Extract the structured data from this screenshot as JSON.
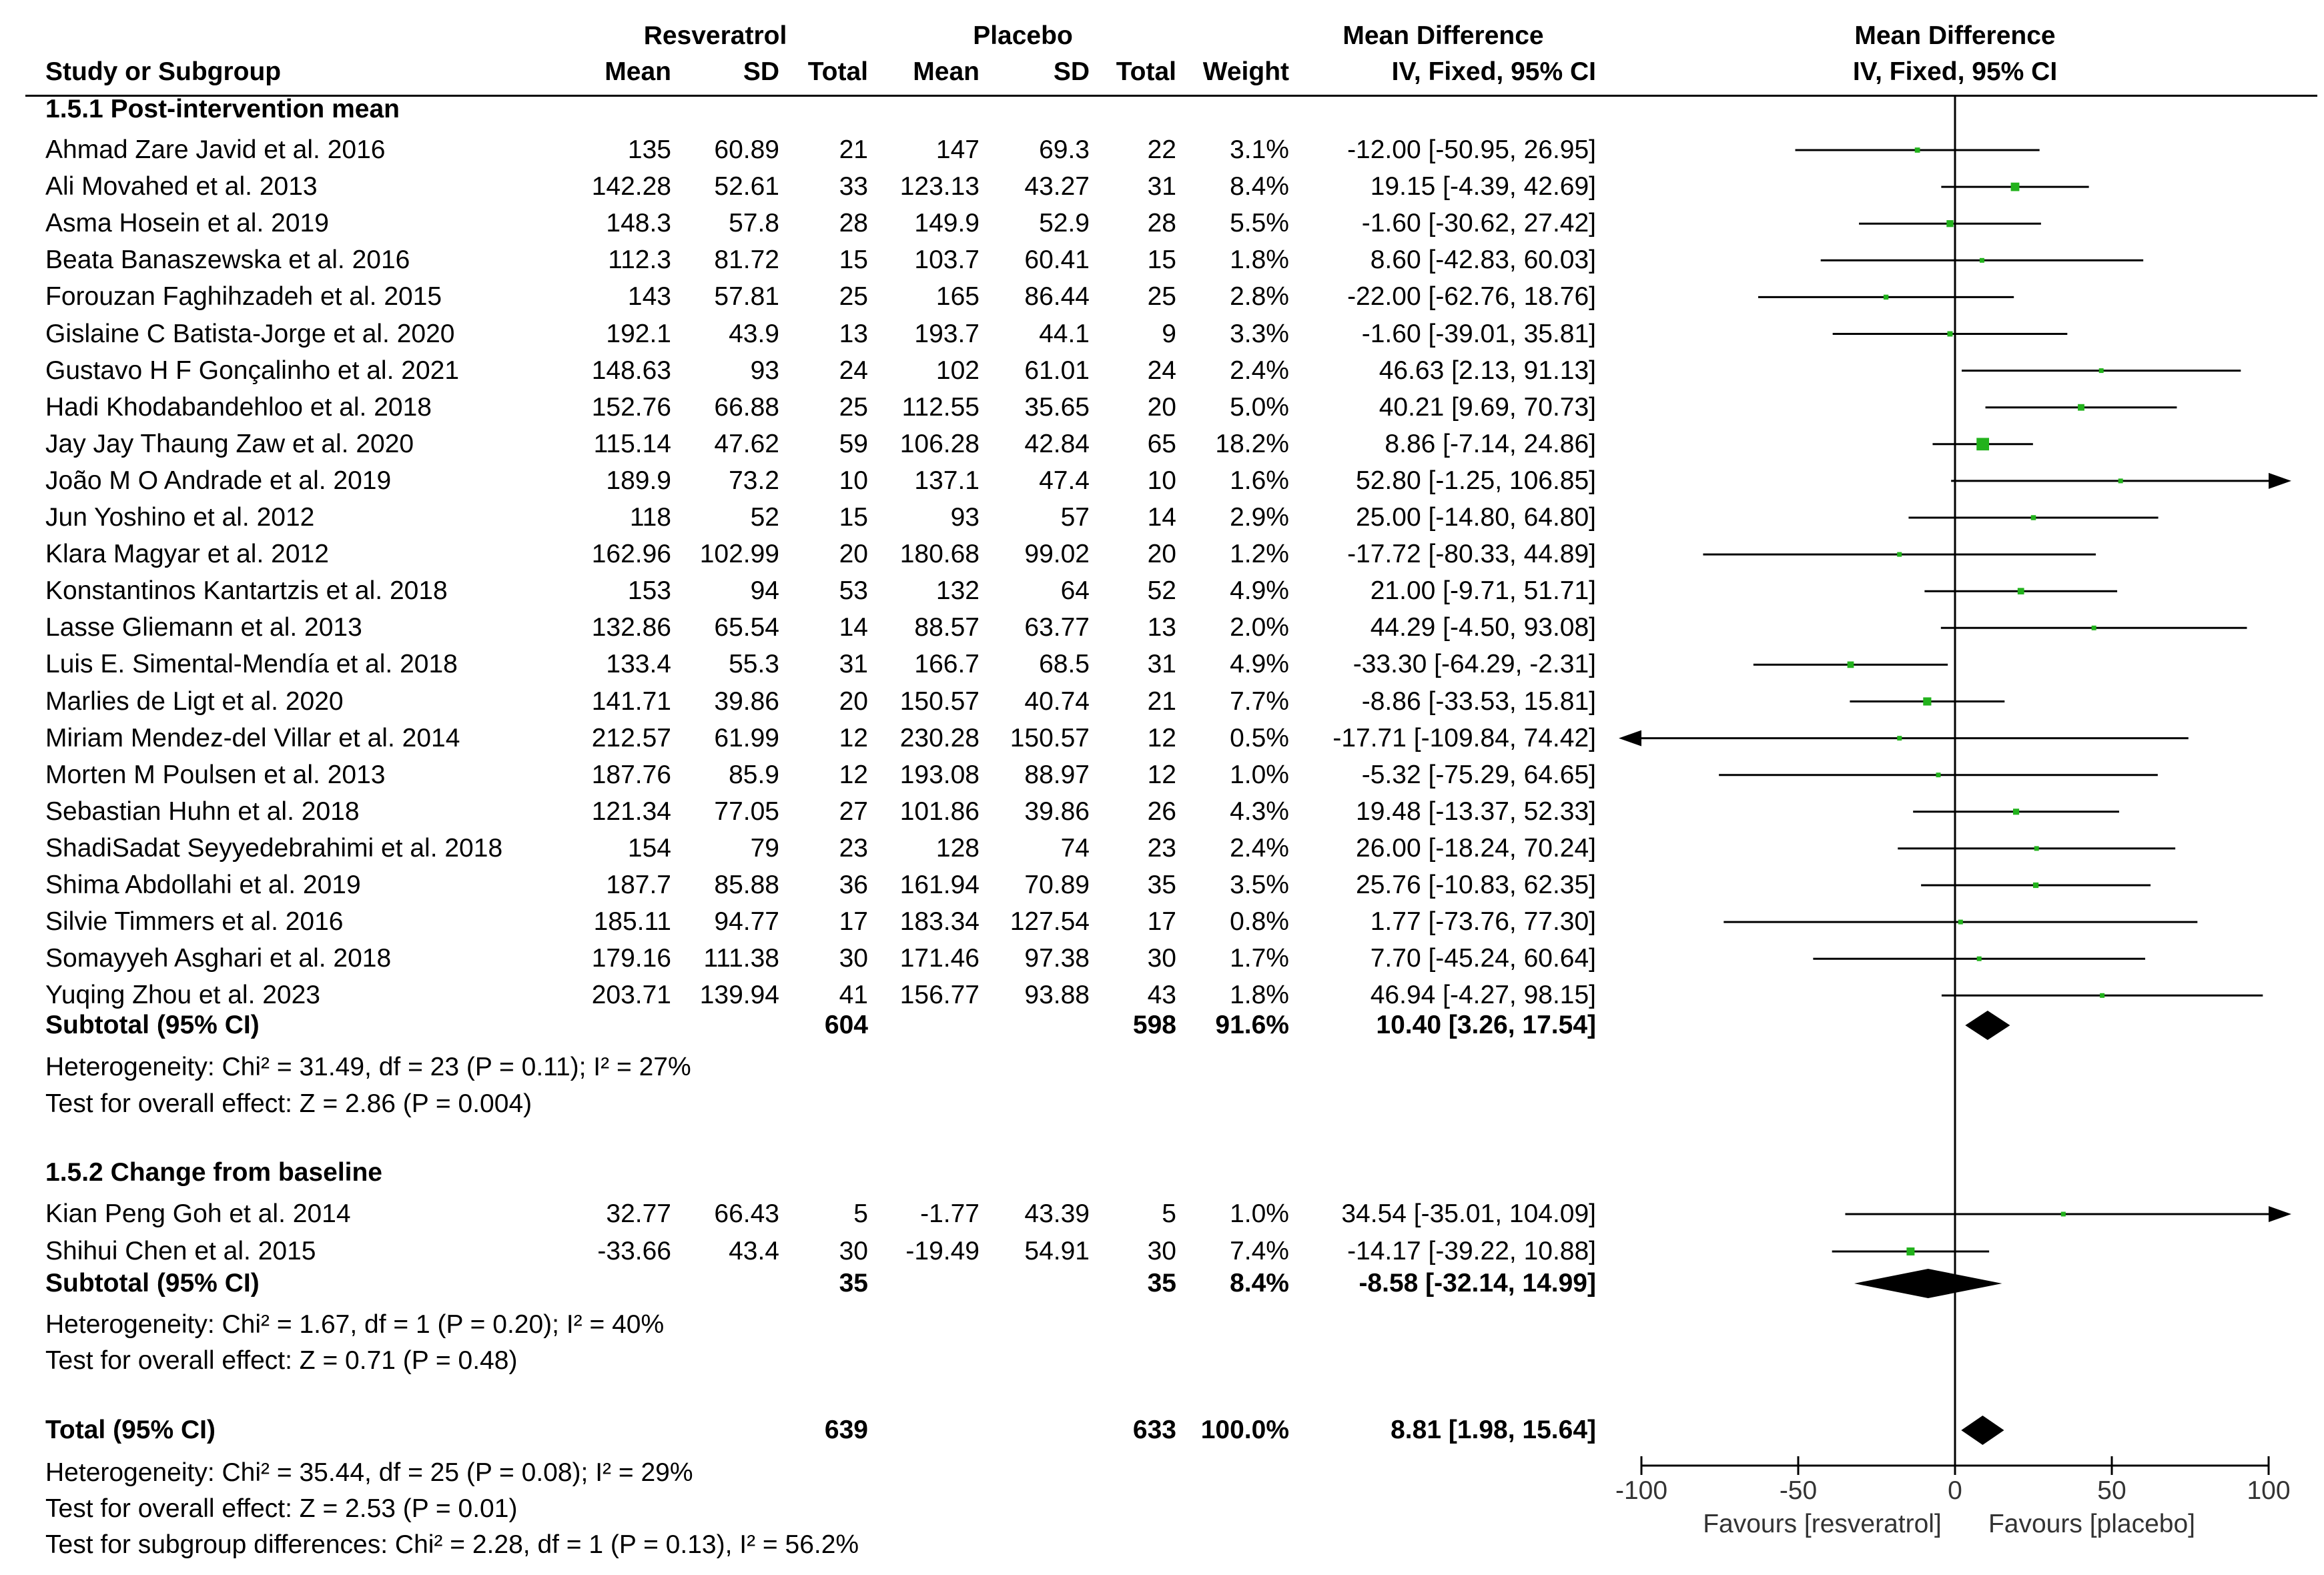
{
  "header": {
    "group_a": "Resveratrol",
    "group_b": "Placebo",
    "md_title": "Mean Difference",
    "plot_title": "Mean Difference",
    "study_col": "Study or Subgroup",
    "mean_a": "Mean",
    "sd_a": "SD",
    "total_a": "Total",
    "mean_b": "Mean",
    "sd_b": "SD",
    "total_b": "Total",
    "weight": "Weight",
    "method": "IV, Fixed, 95% CI",
    "plot_method": "IV, Fixed, 95% CI"
  },
  "subgroups": [
    {
      "title": "1.5.1 Post-intervention mean",
      "studies": [
        {
          "name": "Ahmad Zare Javid et al. 2016",
          "m1": "135",
          "sd1": "60.89",
          "n1": "21",
          "m2": "147",
          "sd2": "69.3",
          "n2": "22",
          "w": "3.1%",
          "ci": "-12.00 [-50.95, 26.95]",
          "md": -12.0,
          "lo": -50.95,
          "hi": 26.95,
          "wt": 3.1
        },
        {
          "name": "Ali Movahed et al. 2013",
          "m1": "142.28",
          "sd1": "52.61",
          "n1": "33",
          "m2": "123.13",
          "sd2": "43.27",
          "n2": "31",
          "w": "8.4%",
          "ci": "19.15 [-4.39, 42.69]",
          "md": 19.15,
          "lo": -4.39,
          "hi": 42.69,
          "wt": 8.4
        },
        {
          "name": "Asma Hosein et al. 2019",
          "m1": "148.3",
          "sd1": "57.8",
          "n1": "28",
          "m2": "149.9",
          "sd2": "52.9",
          "n2": "28",
          "w": "5.5%",
          "ci": "-1.60 [-30.62, 27.42]",
          "md": -1.6,
          "lo": -30.62,
          "hi": 27.42,
          "wt": 5.5
        },
        {
          "name": "Beata Banaszewska et al. 2016",
          "m1": "112.3",
          "sd1": "81.72",
          "n1": "15",
          "m2": "103.7",
          "sd2": "60.41",
          "n2": "15",
          "w": "1.8%",
          "ci": "8.60 [-42.83, 60.03]",
          "md": 8.6,
          "lo": -42.83,
          "hi": 60.03,
          "wt": 1.8
        },
        {
          "name": "Forouzan Faghihzadeh et al. 2015",
          "m1": "143",
          "sd1": "57.81",
          "n1": "25",
          "m2": "165",
          "sd2": "86.44",
          "n2": "25",
          "w": "2.8%",
          "ci": "-22.00 [-62.76, 18.76]",
          "md": -22.0,
          "lo": -62.76,
          "hi": 18.76,
          "wt": 2.8
        },
        {
          "name": "Gislaine C Batista-Jorge et al. 2020",
          "m1": "192.1",
          "sd1": "43.9",
          "n1": "13",
          "m2": "193.7",
          "sd2": "44.1",
          "n2": "9",
          "w": "3.3%",
          "ci": "-1.60 [-39.01, 35.81]",
          "md": -1.6,
          "lo": -39.01,
          "hi": 35.81,
          "wt": 3.3
        },
        {
          "name": "Gustavo H F Gonçalinho et al. 2021",
          "m1": "148.63",
          "sd1": "93",
          "n1": "24",
          "m2": "102",
          "sd2": "61.01",
          "n2": "24",
          "w": "2.4%",
          "ci": "46.63 [2.13, 91.13]",
          "md": 46.63,
          "lo": 2.13,
          "hi": 91.13,
          "wt": 2.4
        },
        {
          "name": "Hadi Khodabandehloo et al. 2018",
          "m1": "152.76",
          "sd1": "66.88",
          "n1": "25",
          "m2": "112.55",
          "sd2": "35.65",
          "n2": "20",
          "w": "5.0%",
          "ci": "40.21 [9.69, 70.73]",
          "md": 40.21,
          "lo": 9.69,
          "hi": 70.73,
          "wt": 5.0
        },
        {
          "name": "Jay Jay Thaung Zaw et al. 2020",
          "m1": "115.14",
          "sd1": "47.62",
          "n1": "59",
          "m2": "106.28",
          "sd2": "42.84",
          "n2": "65",
          "w": "18.2%",
          "ci": "8.86 [-7.14, 24.86]",
          "md": 8.86,
          "lo": -7.14,
          "hi": 24.86,
          "wt": 18.2
        },
        {
          "name": "João M O Andrade et al. 2019",
          "m1": "189.9",
          "sd1": "73.2",
          "n1": "10",
          "m2": "137.1",
          "sd2": "47.4",
          "n2": "10",
          "w": "1.6%",
          "ci": "52.80 [-1.25, 106.85]",
          "md": 52.8,
          "lo": -1.25,
          "hi": 106.85,
          "wt": 1.6
        },
        {
          "name": "Jun Yoshino et al. 2012",
          "m1": "118",
          "sd1": "52",
          "n1": "15",
          "m2": "93",
          "sd2": "57",
          "n2": "14",
          "w": "2.9%",
          "ci": "25.00 [-14.80, 64.80]",
          "md": 25.0,
          "lo": -14.8,
          "hi": 64.8,
          "wt": 2.9
        },
        {
          "name": "Klara Magyar et al. 2012",
          "m1": "162.96",
          "sd1": "102.99",
          "n1": "20",
          "m2": "180.68",
          "sd2": "99.02",
          "n2": "20",
          "w": "1.2%",
          "ci": "-17.72 [-80.33, 44.89]",
          "md": -17.72,
          "lo": -80.33,
          "hi": 44.89,
          "wt": 1.2
        },
        {
          "name": "Konstantinos Kantartzis et al. 2018",
          "m1": "153",
          "sd1": "94",
          "n1": "53",
          "m2": "132",
          "sd2": "64",
          "n2": "52",
          "w": "4.9%",
          "ci": "21.00 [-9.71, 51.71]",
          "md": 21.0,
          "lo": -9.71,
          "hi": 51.71,
          "wt": 4.9
        },
        {
          "name": "Lasse Gliemann et al. 2013",
          "m1": "132.86",
          "sd1": "65.54",
          "n1": "14",
          "m2": "88.57",
          "sd2": "63.77",
          "n2": "13",
          "w": "2.0%",
          "ci": "44.29 [-4.50, 93.08]",
          "md": 44.29,
          "lo": -4.5,
          "hi": 93.08,
          "wt": 2.0
        },
        {
          "name": "Luis E. Simental-Mendía et al. 2018",
          "m1": "133.4",
          "sd1": "55.3",
          "n1": "31",
          "m2": "166.7",
          "sd2": "68.5",
          "n2": "31",
          "w": "4.9%",
          "ci": "-33.30 [-64.29, -2.31]",
          "md": -33.3,
          "lo": -64.29,
          "hi": -2.31,
          "wt": 4.9
        },
        {
          "name": "Marlies de Ligt et al. 2020",
          "m1": "141.71",
          "sd1": "39.86",
          "n1": "20",
          "m2": "150.57",
          "sd2": "40.74",
          "n2": "21",
          "w": "7.7%",
          "ci": "-8.86 [-33.53, 15.81]",
          "md": -8.86,
          "lo": -33.53,
          "hi": 15.81,
          "wt": 7.7
        },
        {
          "name": "Miriam Mendez-del Villar et al. 2014",
          "m1": "212.57",
          "sd1": "61.99",
          "n1": "12",
          "m2": "230.28",
          "sd2": "150.57",
          "n2": "12",
          "w": "0.5%",
          "ci": "-17.71 [-109.84, 74.42]",
          "md": -17.71,
          "lo": -109.84,
          "hi": 74.42,
          "wt": 0.5
        },
        {
          "name": "Morten M Poulsen et al. 2013",
          "m1": "187.76",
          "sd1": "85.9",
          "n1": "12",
          "m2": "193.08",
          "sd2": "88.97",
          "n2": "12",
          "w": "1.0%",
          "ci": "-5.32 [-75.29, 64.65]",
          "md": -5.32,
          "lo": -75.29,
          "hi": 64.65,
          "wt": 1.0
        },
        {
          "name": "Sebastian Huhn et al. 2018",
          "m1": "121.34",
          "sd1": "77.05",
          "n1": "27",
          "m2": "101.86",
          "sd2": "39.86",
          "n2": "26",
          "w": "4.3%",
          "ci": "19.48 [-13.37, 52.33]",
          "md": 19.48,
          "lo": -13.37,
          "hi": 52.33,
          "wt": 4.3
        },
        {
          "name": "ShadiSadat Seyyedebrahimi et al. 2018",
          "m1": "154",
          "sd1": "79",
          "n1": "23",
          "m2": "128",
          "sd2": "74",
          "n2": "23",
          "w": "2.4%",
          "ci": "26.00 [-18.24, 70.24]",
          "md": 26.0,
          "lo": -18.24,
          "hi": 70.24,
          "wt": 2.4
        },
        {
          "name": "Shima Abdollahi et al. 2019",
          "m1": "187.7",
          "sd1": "85.88",
          "n1": "36",
          "m2": "161.94",
          "sd2": "70.89",
          "n2": "35",
          "w": "3.5%",
          "ci": "25.76 [-10.83, 62.35]",
          "md": 25.76,
          "lo": -10.83,
          "hi": 62.35,
          "wt": 3.5
        },
        {
          "name": "Silvie Timmers et al. 2016",
          "m1": "185.11",
          "sd1": "94.77",
          "n1": "17",
          "m2": "183.34",
          "sd2": "127.54",
          "n2": "17",
          "w": "0.8%",
          "ci": "1.77 [-73.76, 77.30]",
          "md": 1.77,
          "lo": -73.76,
          "hi": 77.3,
          "wt": 0.8
        },
        {
          "name": "Somayyeh Asghari et al. 2018",
          "m1": "179.16",
          "sd1": "111.38",
          "n1": "30",
          "m2": "171.46",
          "sd2": "97.38",
          "n2": "30",
          "w": "1.7%",
          "ci": "7.70 [-45.24, 60.64]",
          "md": 7.7,
          "lo": -45.24,
          "hi": 60.64,
          "wt": 1.7
        },
        {
          "name": "Yuqing Zhou et al. 2023",
          "m1": "203.71",
          "sd1": "139.94",
          "n1": "41",
          "m2": "156.77",
          "sd2": "93.88",
          "n2": "43",
          "w": "1.8%",
          "ci": "46.94 [-4.27, 98.15]",
          "md": 46.94,
          "lo": -4.27,
          "hi": 98.15,
          "wt": 1.8
        }
      ],
      "subtotal": {
        "label": "Subtotal (95% CI)",
        "n1": "604",
        "n2": "598",
        "w": "91.6%",
        "ci": "10.40 [3.26, 17.54]",
        "md": 10.4,
        "lo": 3.26,
        "hi": 17.54
      },
      "heterogeneity": "Heterogeneity: Chi² = 31.49, df = 23 (P = 0.11); I² = 27%",
      "overall": "Test for overall effect: Z = 2.86 (P = 0.004)"
    },
    {
      "title": "1.5.2 Change from baseline",
      "studies": [
        {
          "name": "Kian Peng Goh et al. 2014",
          "m1": "32.77",
          "sd1": "66.43",
          "n1": "5",
          "m2": "-1.77",
          "sd2": "43.39",
          "n2": "5",
          "w": "1.0%",
          "ci": "34.54 [-35.01, 104.09]",
          "md": 34.54,
          "lo": -35.01,
          "hi": 104.09,
          "wt": 1.0
        },
        {
          "name": "Shihui Chen et al. 2015",
          "m1": "-33.66",
          "sd1": "43.4",
          "n1": "30",
          "m2": "-19.49",
          "sd2": "54.91",
          "n2": "30",
          "w": "7.4%",
          "ci": "-14.17 [-39.22, 10.88]",
          "md": -14.17,
          "lo": -39.22,
          "hi": 10.88,
          "wt": 7.4
        }
      ],
      "subtotal": {
        "label": "Subtotal (95% CI)",
        "n1": "35",
        "n2": "35",
        "w": "8.4%",
        "ci": "-8.58 [-32.14, 14.99]",
        "md": -8.58,
        "lo": -32.14,
        "hi": 14.99
      },
      "heterogeneity": "Heterogeneity: Chi² = 1.67, df = 1 (P = 0.20); I² = 40%",
      "overall": "Test for overall effect: Z = 0.71 (P = 0.48)"
    }
  ],
  "total": {
    "label": "Total (95% CI)",
    "n1": "639",
    "n2": "633",
    "w": "100.0%",
    "ci": "8.81 [1.98, 15.64]",
    "md": 8.81,
    "lo": 1.98,
    "hi": 15.64
  },
  "footer": {
    "heterogeneity": "Heterogeneity: Chi² = 35.44, df = 25 (P = 0.08); I² = 29%",
    "overall": "Test for overall effect: Z = 2.53 (P = 0.01)",
    "subgroup": "Test for subgroup differences: Chi² = 2.28, df = 1 (P = 0.13), I² = 56.2%"
  },
  "chart_data": {
    "type": "forest",
    "title": "Mean Difference IV, Fixed, 95% CI",
    "xlim": [
      -100,
      100
    ],
    "ticks": [
      -100,
      -50,
      0,
      50,
      100
    ],
    "tick_labels": [
      "-100",
      "-50",
      "0",
      "50",
      "100"
    ],
    "left_label": "Favours [resveratrol]",
    "right_label": "Favours [placebo]",
    "marker_color": "#22b21c",
    "line_color": "#000000"
  }
}
